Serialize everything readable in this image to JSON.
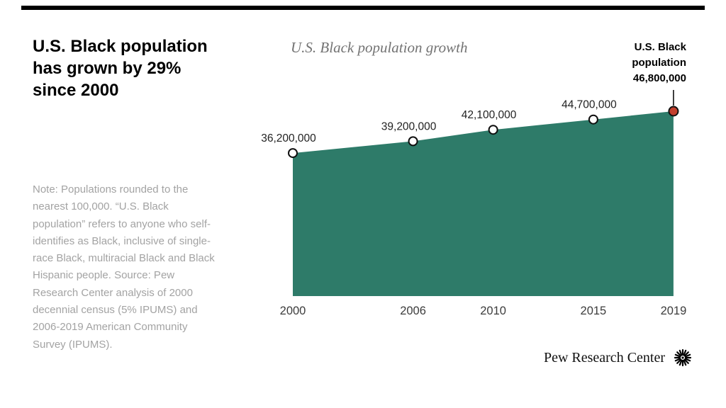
{
  "colors": {
    "area": "#2e7b69",
    "accent_dot": "#c2402e",
    "point_fill": "#ffffff",
    "point_stroke": "#101010",
    "point_label_text": "#222222",
    "axis_label_text": "#3c3c3c",
    "note_text": "#a3a3a3",
    "chart_title_text": "#737373",
    "top_rule": "#000000"
  },
  "header": {
    "headline": "U.S. Black population has grown by 29% since 2000"
  },
  "note": {
    "text": "Note: Populations rounded to the nearest 100,000. “U.S. Black population” refers to anyone who self-identifies as Black, inclusive of single-race Black, multiracial Black and Black Hispanic people. Source: Pew Research Center analysis of 2000 decennial census (5% IPUMS) and 2006-2019 American Community Survey (IPUMS)."
  },
  "chart_data": {
    "type": "area",
    "title": "U.S. Black population growth",
    "x": [
      2000,
      2006,
      2010,
      2015,
      2019
    ],
    "values": [
      36200000,
      39200000,
      42100000,
      44700000,
      46800000
    ],
    "point_labels": [
      "36,200,000",
      "39,200,000",
      "42,100,000",
      "44,700,000",
      "46,800,000"
    ],
    "end_label": {
      "name": "U.S. Black population",
      "value": "46,800,000"
    },
    "xlabel": "",
    "ylabel": "",
    "ylim": [
      0,
      47000000
    ],
    "grid": false,
    "legend": "none"
  },
  "footer": {
    "brand": "Pew Research Center"
  }
}
